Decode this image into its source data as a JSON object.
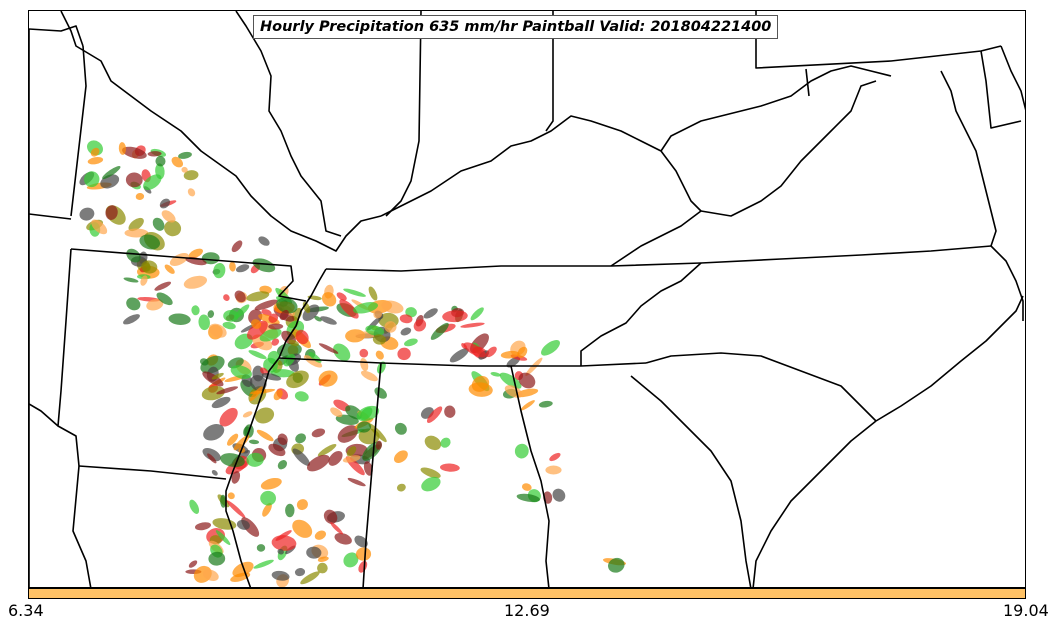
{
  "title": "Hourly Precipitation 635 mm/hr Paintball Valid: 201804221400",
  "colorbar": {
    "color": "#ffc266",
    "tick_labels": [
      "6.34",
      "12.69",
      "19.04"
    ]
  },
  "map": {
    "boundary_color": "#000000",
    "precip_colors": [
      "#1a7a1a",
      "#33cc33",
      "#ee2222",
      "#8b1a1a",
      "#ff8c00",
      "#ffa64d",
      "#8a8a00",
      "#444444"
    ]
  }
}
